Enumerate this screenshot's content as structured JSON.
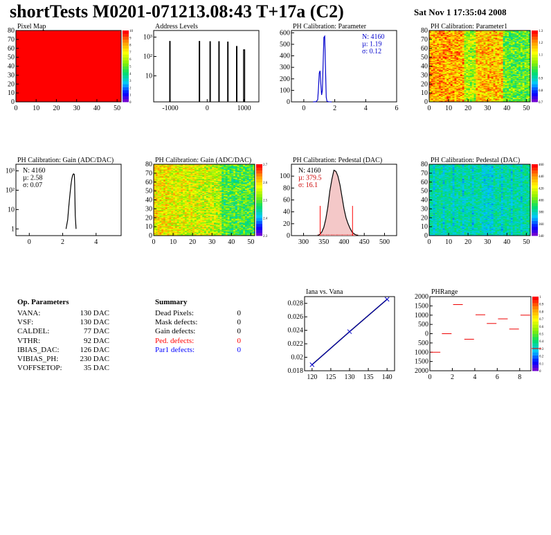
{
  "header": {
    "title": "shortTests M0201-071213.08:43 T+17a (C2)",
    "date": "Sat Nov  1 17:35:04 2008"
  },
  "op_parameters": {
    "heading": "Op. Parameters",
    "rows": [
      {
        "name": "VANA:",
        "value": "130 DAC"
      },
      {
        "name": "VSF:",
        "value": "130 DAC"
      },
      {
        "name": "CALDEL:",
        "value": "77 DAC"
      },
      {
        "name": "VTHR:",
        "value": "92 DAC"
      },
      {
        "name": "IBIAS_DAC:",
        "value": "126 DAC"
      },
      {
        "name": "VIBIAS_PH:",
        "value": "230 DAC"
      },
      {
        "name": "VOFFSETOP:",
        "value": "35 DAC"
      }
    ]
  },
  "summary": {
    "heading": "Summary",
    "rows": [
      {
        "name": "Dead Pixels:",
        "value": "0",
        "color": "#000000"
      },
      {
        "name": "Mask defects:",
        "value": "0",
        "color": "#000000"
      },
      {
        "name": "Gain defects:",
        "value": "0",
        "color": "#000000"
      },
      {
        "name": "Ped. defects:",
        "value": "0",
        "color": "#ff0000"
      },
      {
        "name": "Par1 defects:",
        "value": "0",
        "color": "#0000ff"
      }
    ]
  },
  "chart_data": [
    {
      "id": "pixel-map",
      "type": "heatmap",
      "title": "Pixel Map",
      "xlim": [
        0,
        52
      ],
      "ylim": [
        0,
        80
      ],
      "xticks": [
        0,
        10,
        20,
        30,
        40,
        50
      ],
      "yticks": [
        0,
        10,
        20,
        30,
        40,
        50,
        60,
        70,
        80
      ],
      "zlim": [
        0,
        10
      ],
      "zticks": [
        "0",
        "1",
        "2",
        "3",
        "4",
        "5",
        "6",
        "7",
        "8",
        "9",
        "10"
      ],
      "uniform_value": 10
    },
    {
      "id": "address-levels",
      "type": "line",
      "title": "Address Levels",
      "log_y": true,
      "xlim": [
        -1450,
        1400
      ],
      "xticks": [
        {
          "v": -1000,
          "label": "-1000"
        },
        {
          "v": 0,
          "label": "0"
        },
        {
          "v": 1000,
          "label": "1000"
        }
      ],
      "yticks": [
        {
          "v": 10,
          "label": "10"
        },
        {
          "v": 100,
          "label": "10²"
        },
        {
          "v": 1000,
          "label": "10³"
        }
      ],
      "peaks": [
        {
          "x": -1010,
          "y": 600,
          "w": 12
        },
        {
          "x": -210,
          "y": 600,
          "w": 12
        },
        {
          "x": 80,
          "y": 580,
          "w": 12
        },
        {
          "x": 320,
          "y": 580,
          "w": 12
        },
        {
          "x": 560,
          "y": 560,
          "w": 12
        },
        {
          "x": 800,
          "y": 330,
          "w": 12
        },
        {
          "x": 1000,
          "y": 220,
          "w": 30
        }
      ]
    },
    {
      "id": "ph-cal-parameter",
      "type": "line",
      "title": "PH Calibration: Parameter",
      "xlim": [
        -0.8,
        6
      ],
      "ylim": [
        0,
        620
      ],
      "xticks": [
        0,
        2,
        4,
        6
      ],
      "yticks": [
        0,
        100,
        200,
        300,
        400,
        500,
        600
      ],
      "x": [
        0.6,
        0.8,
        0.9,
        0.95,
        1.0,
        1.05,
        1.1,
        1.15,
        1.2,
        1.25,
        1.3,
        1.35,
        1.4,
        1.45,
        1.5,
        1.6,
        1.8
      ],
      "y": [
        0,
        2,
        20,
        120,
        250,
        270,
        150,
        60,
        100,
        330,
        560,
        570,
        300,
        40,
        5,
        1,
        0
      ],
      "stats": {
        "N": "N: 4160",
        "mean": "µ: 1.19",
        "sigma": "σ: 0.12",
        "color": "#0000cc"
      },
      "line_color": "#0000cc"
    },
    {
      "id": "ph-cal-parameter1",
      "type": "heatmap",
      "title": "PH Calibration: Parameter1",
      "xlim": [
        0,
        52
      ],
      "ylim": [
        0,
        80
      ],
      "xticks": [
        0,
        10,
        20,
        30,
        40,
        50
      ],
      "yticks": [
        0,
        10,
        20,
        30,
        40,
        50,
        60,
        70,
        80
      ],
      "zticks": [
        "0.7",
        "0.8",
        "0.9",
        "1",
        "1.1",
        "1.2",
        "1.3"
      ]
    },
    {
      "id": "ph-cal-gain-hist",
      "type": "line",
      "title": "PH Calibration: Gain (ADC/DAC)",
      "log_y": true,
      "xlim": [
        -0.8,
        5.5
      ],
      "xticks": [
        0,
        2,
        4
      ],
      "yticks": [
        {
          "v": 1,
          "label": "1"
        },
        {
          "v": 10,
          "label": "10"
        },
        {
          "v": 100,
          "label": "10²"
        },
        {
          "v": 1000,
          "label": "10³"
        }
      ],
      "x": [
        2.2,
        2.3,
        2.35,
        2.4,
        2.45,
        2.5,
        2.55,
        2.6,
        2.65,
        2.7,
        2.72,
        2.75,
        2.8
      ],
      "y": [
        1,
        3,
        10,
        30,
        80,
        200,
        400,
        600,
        700,
        650,
        200,
        5,
        1
      ],
      "stats": {
        "N": "N: 4160",
        "mean": "µ: 2.58",
        "sigma": "σ: 0.07",
        "color": "#000000"
      }
    },
    {
      "id": "ph-cal-gain-map",
      "type": "heatmap",
      "title": "PH Calibration: Gain (ADC/DAC)",
      "xlim": [
        0,
        52
      ],
      "ylim": [
        0,
        80
      ],
      "xticks": [
        0,
        10,
        20,
        30,
        40,
        50
      ],
      "yticks": [
        0,
        10,
        20,
        30,
        40,
        50,
        60,
        70,
        80
      ],
      "zticks": [
        "2.3",
        "2.4",
        "2.5",
        "2.6",
        "2.7"
      ]
    },
    {
      "id": "ph-cal-pedestal-hist",
      "type": "line",
      "title": "PH Calibration: Pedestal (DAC)",
      "xlim": [
        270,
        530
      ],
      "ylim": [
        0,
        120
      ],
      "xticks": [
        300,
        350,
        400,
        450,
        500
      ],
      "yticks": [
        0,
        20,
        40,
        60,
        80,
        100
      ],
      "x": [
        335,
        340,
        345,
        350,
        355,
        360,
        365,
        370,
        375,
        380,
        385,
        390,
        395,
        400,
        405,
        410,
        415,
        420,
        425,
        430,
        435
      ],
      "y": [
        0,
        2,
        6,
        14,
        28,
        48,
        75,
        95,
        110,
        108,
        100,
        85,
        65,
        45,
        30,
        20,
        12,
        6,
        3,
        1,
        0
      ],
      "cut_lines": [
        {
          "x": 341,
          "y": 50
        },
        {
          "x": 421,
          "y": 50
        }
      ],
      "stats": {
        "N": "N: 4160",
        "mean": "µ: 379.5",
        "sigma": "σ: 16.1",
        "color": "#cc0000"
      }
    },
    {
      "id": "ph-cal-pedestal-map",
      "type": "heatmap",
      "title": "PH Calibration: Pedestal (DAC)",
      "xlim": [
        0,
        52
      ],
      "ylim": [
        0,
        80
      ],
      "xticks": [
        0,
        10,
        20,
        30,
        40,
        50
      ],
      "yticks": [
        0,
        10,
        20,
        30,
        40,
        50,
        60,
        70,
        80
      ],
      "zticks": [
        "340",
        "360",
        "380",
        "400",
        "420",
        "440",
        "460"
      ]
    },
    {
      "id": "iana-vs-vana",
      "type": "scatter",
      "title": "Iana vs. Vana",
      "xlim": [
        118,
        142
      ],
      "ylim": [
        0.018,
        0.029
      ],
      "xticks": [
        120,
        125,
        130,
        135,
        140
      ],
      "yticks": [
        0.018,
        0.02,
        0.022,
        0.024,
        0.026,
        0.028
      ],
      "x": [
        120,
        130,
        140
      ],
      "y": [
        0.0189,
        0.0238,
        0.0286
      ]
    },
    {
      "id": "phrange",
      "type": "scatter",
      "title": "PHRange",
      "xlim": [
        0,
        9
      ],
      "ylim": [
        -2000,
        2000
      ],
      "xticks": [
        0,
        2,
        4,
        6,
        8
      ],
      "yticks": [
        -2000,
        -1500,
        -1000,
        -500,
        0,
        500,
        1000,
        1500,
        2000
      ],
      "ytick_labels": [
        "2000",
        "1500",
        "1000",
        "500",
        "0",
        "500",
        "1000",
        "1500",
        "2000"
      ],
      "zticks": [
        "0",
        "0.1",
        "0.2",
        "0.3",
        "0.4",
        "0.5",
        "0.6",
        "0.7",
        "0.8",
        "0.9",
        "1"
      ],
      "x": [
        0,
        1,
        2,
        3,
        4,
        5,
        6,
        7,
        8,
        9
      ],
      "y": [
        -1000,
        0,
        1570,
        -300,
        1020,
        550,
        800,
        250,
        1000,
        -800
      ]
    }
  ]
}
